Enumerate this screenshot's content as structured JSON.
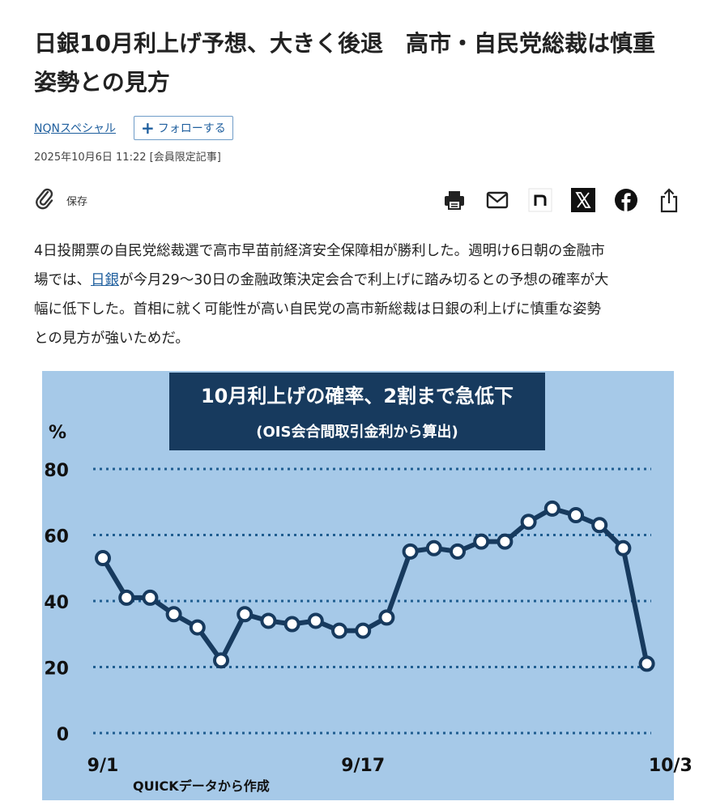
{
  "article": {
    "headline_line1": "日銀10月利上げ予想、大きく後退　高市・自民党総裁は慎重",
    "headline_line2": "姿勢との見方",
    "series": "NQNスペシャル",
    "follow_label": "フォローする",
    "date": "2025年10月6日 11:22 [会員限定記事]",
    "save_label": "保存",
    "lead_1": "4日投開票の自民党総裁選で高市早苗前経済安全保障相が勝利した。週明け6日朝の金融市",
    "lead_2a": "場では、",
    "lead_2_link": "日銀",
    "lead_2b": "が今月29〜30日の金融政策決定会合で利上げに踏み切るとの予想の確率が大",
    "lead_3": "幅に低下した。首相に就く可能性が高い自民党の高市新総裁は日銀の利上げに慎重な姿勢",
    "lead_4": "との見方が強いためだ。"
  },
  "icons": {
    "save": "paperclip-icon",
    "share": [
      "print-icon",
      "mail-icon",
      "note-icon",
      "x-icon",
      "facebook-icon",
      "share-icon"
    ]
  },
  "colors": {
    "link": "#1f5f9e",
    "chart_bg": "#a6c9e8",
    "chart_title_bg": "#173a5e",
    "line": "#173a5e",
    "grid": "#1f5d90"
  },
  "chart_data": {
    "type": "line",
    "title": "10月利上げの確率、2割まで急低下",
    "subtitle": "(OIS会合間取引金利から算出)",
    "unit_label": "%",
    "source": "QUICKデータから作成",
    "ylim": [
      0,
      80
    ],
    "yticks": [
      0,
      20,
      40,
      60,
      80
    ],
    "xtick_labels": [
      {
        "index": 0,
        "label": "9/1"
      },
      {
        "index": 11,
        "label": "9/17"
      },
      {
        "index": 24,
        "label": "10/3"
      }
    ],
    "grid": true,
    "series": [
      {
        "values": [
          53,
          41,
          41,
          36,
          32,
          22,
          36,
          34,
          33,
          34,
          31,
          31,
          35,
          55,
          56,
          55,
          58,
          58,
          64,
          68,
          66,
          63,
          56,
          21
        ]
      }
    ]
  }
}
